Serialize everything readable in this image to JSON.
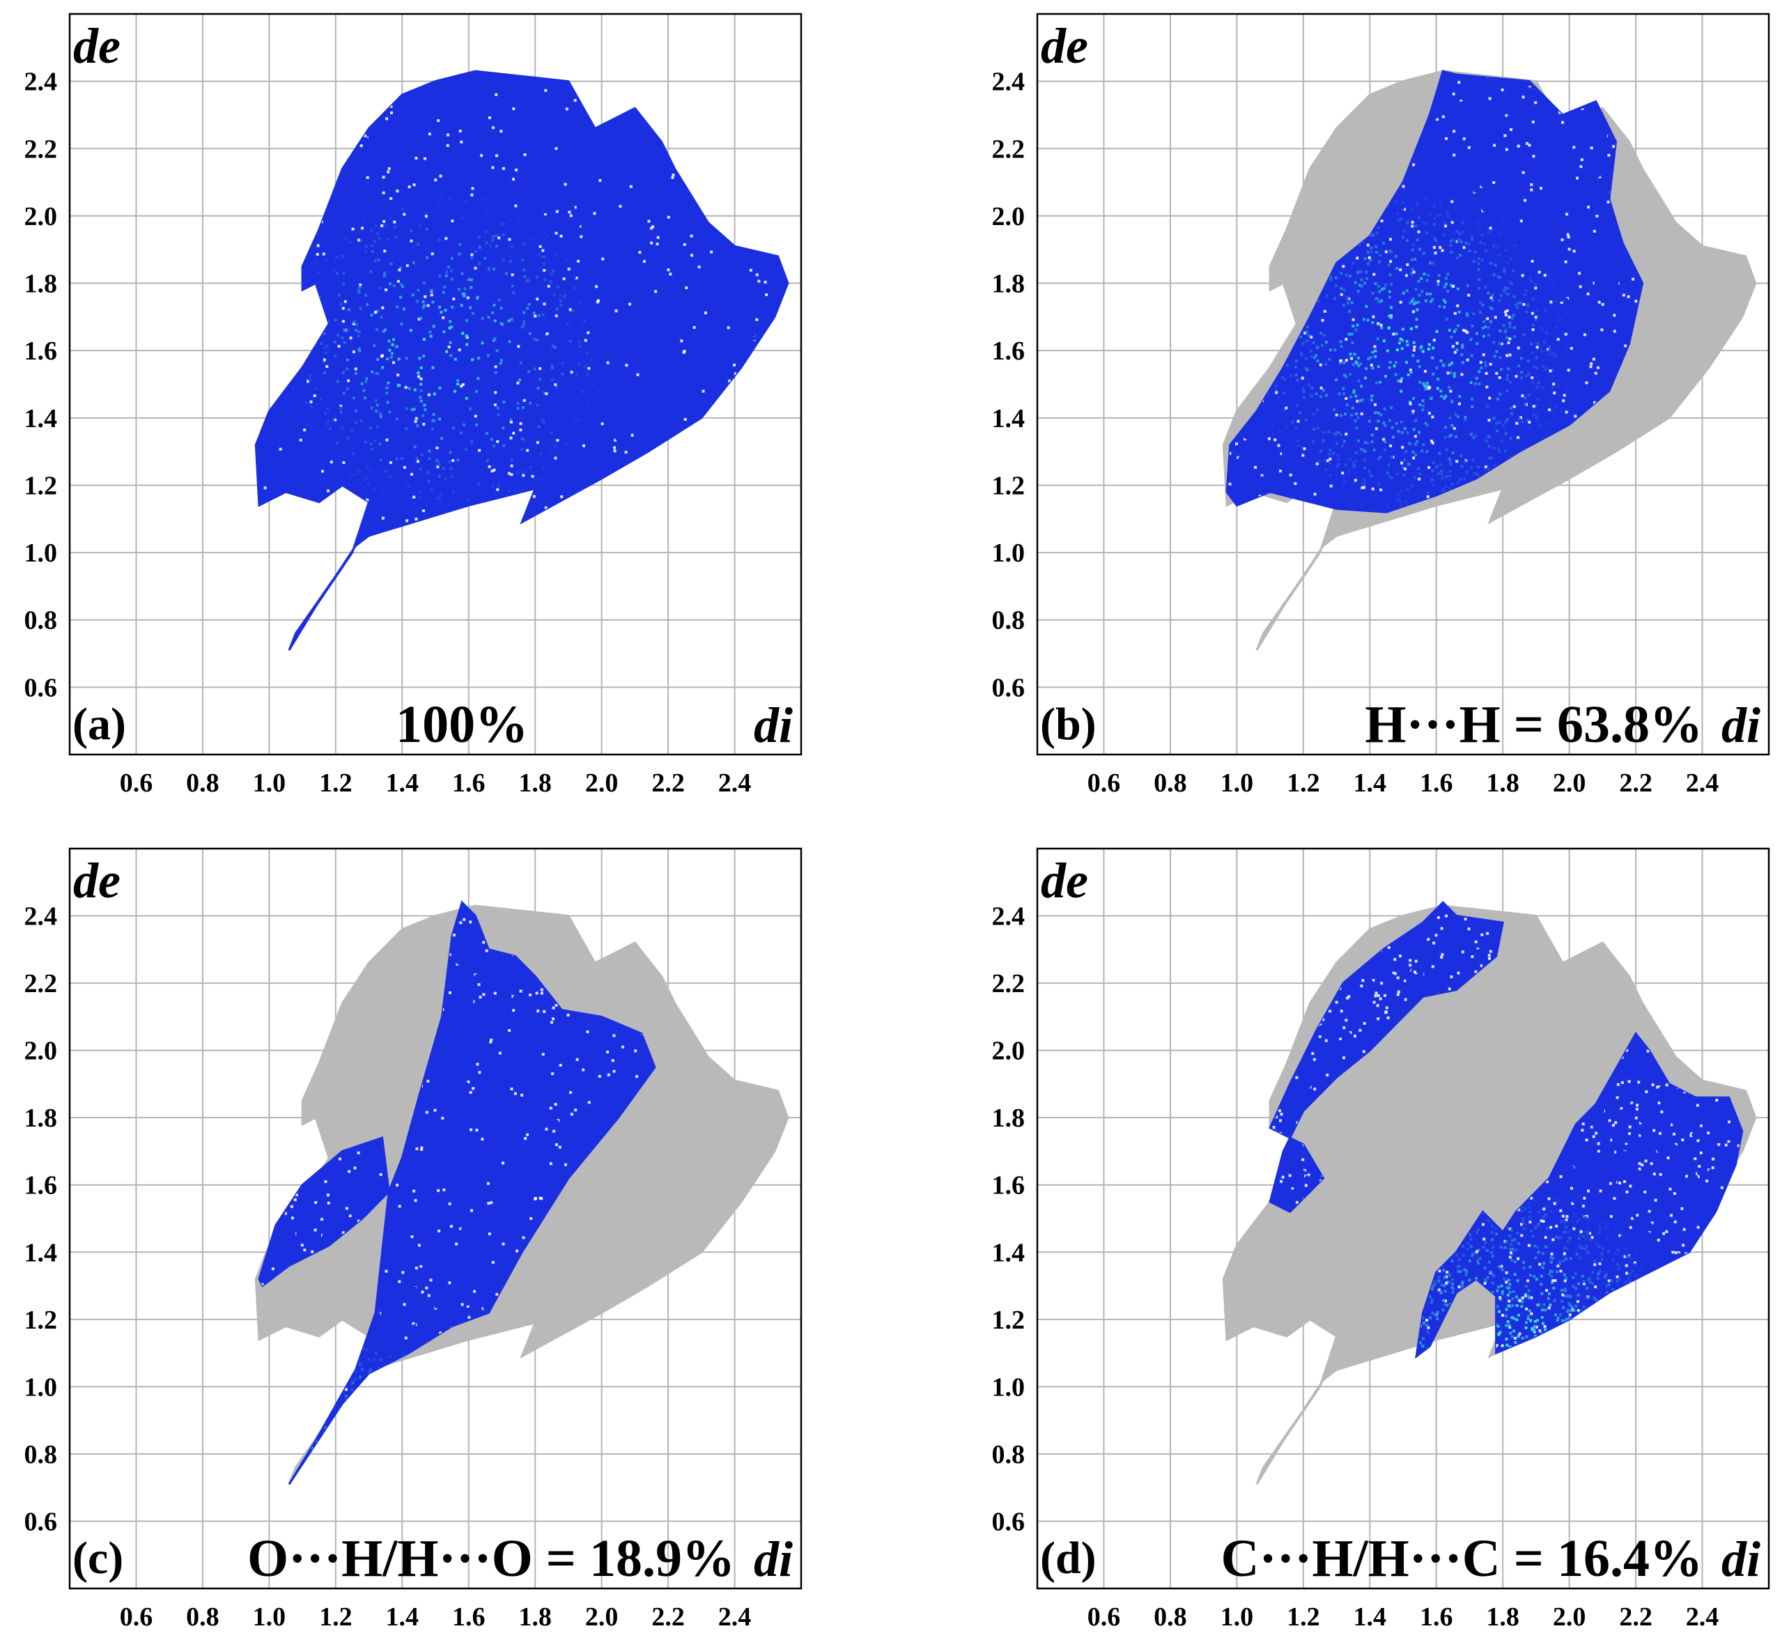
{
  "figure": {
    "palette": {
      "background": "#ffffff",
      "grid": "#b4b4b4",
      "frame": "#000000",
      "density_low": "#1a2fe0",
      "density_high": "#3fe6d2",
      "other_contacts": "#b9b9b9"
    }
  },
  "chart_data": [
    {
      "type": "scatter",
      "subtype": "Hirshfeld fingerprint plot (2D histogram)",
      "panel_label": "(a)",
      "caption": "100%",
      "xlabel": "di",
      "ylabel": "de",
      "xlim": [
        0.4,
        2.6
      ],
      "ylim": [
        0.4,
        2.6
      ],
      "xticks": [
        "0.6",
        "0.8",
        "1.0",
        "1.2",
        "1.4",
        "1.6",
        "1.8",
        "2.0",
        "2.2",
        "2.4"
      ],
      "yticks": [
        "0.6",
        "0.8",
        "1.0",
        "1.2",
        "1.4",
        "1.6",
        "1.8",
        "2.0",
        "2.2",
        "2.4"
      ],
      "grid": true,
      "contact": "all",
      "percentage": 100.0,
      "highlight_region": [
        [
          1.06,
          0.71
        ],
        [
          1.08,
          0.76
        ],
        [
          1.2,
          0.93
        ],
        [
          1.26,
          1.02
        ],
        [
          1.3,
          1.05
        ],
        [
          1.4,
          1.08
        ],
        [
          1.6,
          1.14
        ],
        [
          1.72,
          1.17
        ],
        [
          1.8,
          1.19
        ],
        [
          1.76,
          1.09
        ],
        [
          2.0,
          1.22
        ],
        [
          2.14,
          1.3
        ],
        [
          2.3,
          1.4
        ],
        [
          2.42,
          1.55
        ],
        [
          2.52,
          1.7
        ],
        [
          2.56,
          1.8
        ],
        [
          2.53,
          1.88
        ],
        [
          2.4,
          1.91
        ],
        [
          2.32,
          1.98
        ],
        [
          2.22,
          2.14
        ],
        [
          2.18,
          2.22
        ],
        [
          2.1,
          2.32
        ],
        [
          1.98,
          2.26
        ],
        [
          1.9,
          2.4
        ],
        [
          1.62,
          2.43
        ],
        [
          1.5,
          2.4
        ],
        [
          1.4,
          2.36
        ],
        [
          1.3,
          2.26
        ],
        [
          1.22,
          2.14
        ],
        [
          1.15,
          1.96
        ],
        [
          1.1,
          1.85
        ],
        [
          1.1,
          1.78
        ],
        [
          1.14,
          1.8
        ],
        [
          1.18,
          1.68
        ],
        [
          1.1,
          1.55
        ],
        [
          1.0,
          1.42
        ],
        [
          0.96,
          1.32
        ],
        [
          0.97,
          1.14
        ],
        [
          1.05,
          1.18
        ],
        [
          1.15,
          1.15
        ],
        [
          1.22,
          1.2
        ],
        [
          1.3,
          1.15
        ],
        [
          1.25,
          1.0
        ],
        [
          1.14,
          0.84
        ]
      ],
      "grey_region": [],
      "density_hotspot": [
        1.52,
        1.6
      ]
    },
    {
      "type": "scatter",
      "subtype": "Hirshfeld fingerprint plot (2D histogram)",
      "panel_label": "(b)",
      "caption": "H···H = 63.8%",
      "xlabel": "di",
      "ylabel": "de",
      "xlim": [
        0.4,
        2.6
      ],
      "ylim": [
        0.4,
        2.6
      ],
      "xticks": [
        "0.6",
        "0.8",
        "1.0",
        "1.2",
        "1.4",
        "1.6",
        "1.8",
        "2.0",
        "2.2",
        "2.4"
      ],
      "yticks": [
        "0.6",
        "0.8",
        "1.0",
        "1.2",
        "1.4",
        "1.6",
        "1.8",
        "2.0",
        "2.2",
        "2.4"
      ],
      "grid": true,
      "contact": "H···H",
      "percentage": 63.8,
      "highlight_region": [
        [
          1.0,
          1.14
        ],
        [
          1.1,
          1.18
        ],
        [
          1.22,
          1.15
        ],
        [
          1.3,
          1.13
        ],
        [
          1.45,
          1.12
        ],
        [
          1.6,
          1.17
        ],
        [
          1.72,
          1.22
        ],
        [
          1.85,
          1.3
        ],
        [
          2.0,
          1.38
        ],
        [
          2.12,
          1.48
        ],
        [
          2.18,
          1.62
        ],
        [
          2.22,
          1.8
        ],
        [
          2.16,
          1.92
        ],
        [
          2.12,
          2.05
        ],
        [
          2.14,
          2.22
        ],
        [
          2.08,
          2.34
        ],
        [
          1.98,
          2.3
        ],
        [
          1.88,
          2.4
        ],
        [
          1.66,
          2.42
        ],
        [
          1.62,
          2.43
        ],
        [
          1.58,
          2.3
        ],
        [
          1.5,
          2.1
        ],
        [
          1.4,
          1.94
        ],
        [
          1.3,
          1.86
        ],
        [
          1.22,
          1.7
        ],
        [
          1.14,
          1.55
        ],
        [
          1.06,
          1.42
        ],
        [
          0.98,
          1.32
        ],
        [
          0.97,
          1.18
        ]
      ],
      "grey_region": [
        [
          1.06,
          0.71
        ],
        [
          1.08,
          0.76
        ],
        [
          1.2,
          0.93
        ],
        [
          1.26,
          1.02
        ],
        [
          1.3,
          1.05
        ],
        [
          1.4,
          1.08
        ],
        [
          1.6,
          1.14
        ],
        [
          1.72,
          1.17
        ],
        [
          1.8,
          1.19
        ],
        [
          1.76,
          1.09
        ],
        [
          2.0,
          1.22
        ],
        [
          2.14,
          1.3
        ],
        [
          2.3,
          1.4
        ],
        [
          2.42,
          1.55
        ],
        [
          2.52,
          1.7
        ],
        [
          2.56,
          1.8
        ],
        [
          2.53,
          1.88
        ],
        [
          2.4,
          1.91
        ],
        [
          2.32,
          1.98
        ],
        [
          2.22,
          2.14
        ],
        [
          2.18,
          2.22
        ],
        [
          2.1,
          2.32
        ],
        [
          1.98,
          2.26
        ],
        [
          1.9,
          2.4
        ],
        [
          1.62,
          2.43
        ],
        [
          1.5,
          2.4
        ],
        [
          1.4,
          2.36
        ],
        [
          1.3,
          2.26
        ],
        [
          1.22,
          2.14
        ],
        [
          1.15,
          1.96
        ],
        [
          1.1,
          1.85
        ],
        [
          1.1,
          1.78
        ],
        [
          1.14,
          1.8
        ],
        [
          1.18,
          1.68
        ],
        [
          1.1,
          1.55
        ],
        [
          1.0,
          1.42
        ],
        [
          0.96,
          1.32
        ],
        [
          0.97,
          1.14
        ],
        [
          1.05,
          1.18
        ],
        [
          1.15,
          1.15
        ],
        [
          1.22,
          1.2
        ],
        [
          1.3,
          1.15
        ],
        [
          1.25,
          1.0
        ],
        [
          1.14,
          0.84
        ]
      ],
      "density_hotspot": [
        1.52,
        1.6
      ]
    },
    {
      "type": "scatter",
      "subtype": "Hirshfeld fingerprint plot (2D histogram)",
      "panel_label": "(c)",
      "caption": "O···H/H···O = 18.9%",
      "xlabel": "di",
      "ylabel": "de",
      "xlim": [
        0.4,
        2.6
      ],
      "ylim": [
        0.4,
        2.6
      ],
      "xticks": [
        "0.6",
        "0.8",
        "1.0",
        "1.2",
        "1.4",
        "1.6",
        "1.8",
        "2.0",
        "2.2",
        "2.4"
      ],
      "yticks": [
        "0.6",
        "0.8",
        "1.0",
        "1.2",
        "1.4",
        "1.6",
        "1.8",
        "2.0",
        "2.2",
        "2.4"
      ],
      "grid": true,
      "contact": "O···H/H···O",
      "percentage": 18.9,
      "highlight_region": [
        [
          1.06,
          0.71
        ],
        [
          1.12,
          0.8
        ],
        [
          1.22,
          0.95
        ],
        [
          1.3,
          1.04
        ],
        [
          1.42,
          1.1
        ],
        [
          1.55,
          1.18
        ],
        [
          1.66,
          1.22
        ],
        [
          1.76,
          1.4
        ],
        [
          1.9,
          1.62
        ],
        [
          2.05,
          1.8
        ],
        [
          2.16,
          1.95
        ],
        [
          2.12,
          2.05
        ],
        [
          2.0,
          2.1
        ],
        [
          1.88,
          2.12
        ],
        [
          1.8,
          2.22
        ],
        [
          1.74,
          2.28
        ],
        [
          1.66,
          2.3
        ],
        [
          1.62,
          2.4
        ],
        [
          1.58,
          2.44
        ],
        [
          1.55,
          2.34
        ],
        [
          1.52,
          2.1
        ],
        [
          1.45,
          1.86
        ],
        [
          1.4,
          1.68
        ],
        [
          1.36,
          1.58
        ],
        [
          1.28,
          1.5
        ],
        [
          1.18,
          1.42
        ],
        [
          1.06,
          1.36
        ],
        [
          0.98,
          1.3
        ],
        [
          0.97,
          1.32
        ],
        [
          1.02,
          1.48
        ],
        [
          1.1,
          1.6
        ],
        [
          1.22,
          1.7
        ],
        [
          1.34,
          1.74
        ],
        [
          1.36,
          1.58
        ],
        [
          1.34,
          1.4
        ],
        [
          1.32,
          1.22
        ],
        [
          1.26,
          1.05
        ],
        [
          1.14,
          0.84
        ]
      ],
      "grey_region": [
        [
          1.06,
          0.71
        ],
        [
          1.08,
          0.76
        ],
        [
          1.2,
          0.93
        ],
        [
          1.26,
          1.02
        ],
        [
          1.3,
          1.05
        ],
        [
          1.4,
          1.08
        ],
        [
          1.6,
          1.14
        ],
        [
          1.72,
          1.17
        ],
        [
          1.8,
          1.19
        ],
        [
          1.76,
          1.09
        ],
        [
          2.0,
          1.22
        ],
        [
          2.14,
          1.3
        ],
        [
          2.3,
          1.4
        ],
        [
          2.42,
          1.55
        ],
        [
          2.52,
          1.7
        ],
        [
          2.56,
          1.8
        ],
        [
          2.53,
          1.88
        ],
        [
          2.4,
          1.91
        ],
        [
          2.32,
          1.98
        ],
        [
          2.22,
          2.14
        ],
        [
          2.18,
          2.22
        ],
        [
          2.1,
          2.32
        ],
        [
          1.98,
          2.26
        ],
        [
          1.9,
          2.4
        ],
        [
          1.62,
          2.43
        ],
        [
          1.5,
          2.4
        ],
        [
          1.4,
          2.36
        ],
        [
          1.3,
          2.26
        ],
        [
          1.22,
          2.14
        ],
        [
          1.15,
          1.96
        ],
        [
          1.1,
          1.85
        ],
        [
          1.1,
          1.78
        ],
        [
          1.14,
          1.8
        ],
        [
          1.18,
          1.68
        ],
        [
          1.1,
          1.55
        ],
        [
          1.0,
          1.42
        ],
        [
          0.96,
          1.32
        ],
        [
          0.97,
          1.14
        ],
        [
          1.05,
          1.18
        ],
        [
          1.15,
          1.15
        ],
        [
          1.22,
          1.2
        ],
        [
          1.3,
          1.15
        ],
        [
          1.25,
          1.0
        ],
        [
          1.14,
          0.84
        ]
      ],
      "density_hotspot": [
        1.08,
        0.76
      ]
    },
    {
      "type": "scatter",
      "subtype": "Hirshfeld fingerprint plot (2D histogram)",
      "panel_label": "(d)",
      "caption": "C···H/H···C = 16.4%",
      "xlabel": "di",
      "ylabel": "de",
      "xlim": [
        0.4,
        2.6
      ],
      "ylim": [
        0.4,
        2.6
      ],
      "xticks": [
        "0.6",
        "0.8",
        "1.0",
        "1.2",
        "1.4",
        "1.6",
        "1.8",
        "2.0",
        "2.2",
        "2.4"
      ],
      "yticks": [
        "0.6",
        "0.8",
        "1.0",
        "1.2",
        "1.4",
        "1.6",
        "1.8",
        "2.0",
        "2.2",
        "2.4"
      ],
      "grid": true,
      "contact": "C···H/H···C",
      "percentage": 16.4,
      "highlight_region": [
        [
          1.1,
          1.77
        ],
        [
          1.16,
          1.9
        ],
        [
          1.24,
          2.06
        ],
        [
          1.32,
          2.2
        ],
        [
          1.44,
          2.3
        ],
        [
          1.56,
          2.38
        ],
        [
          1.62,
          2.44
        ],
        [
          1.66,
          2.4
        ],
        [
          1.8,
          2.38
        ],
        [
          1.78,
          2.28
        ],
        [
          1.66,
          2.18
        ],
        [
          1.56,
          2.16
        ],
        [
          1.46,
          2.06
        ],
        [
          1.4,
          2.0
        ],
        [
          1.3,
          1.92
        ],
        [
          1.2,
          1.82
        ],
        [
          1.14,
          1.7
        ],
        [
          1.1,
          1.55
        ],
        [
          1.16,
          1.52
        ],
        [
          1.22,
          1.58
        ],
        [
          1.26,
          1.62
        ],
        [
          1.2,
          1.72
        ]
      ],
      "highlight_region_2": [
        [
          1.54,
          1.09
        ],
        [
          1.58,
          1.12
        ],
        [
          1.62,
          1.2
        ],
        [
          1.66,
          1.28
        ],
        [
          1.72,
          1.32
        ],
        [
          1.78,
          1.27
        ],
        [
          1.78,
          1.1
        ],
        [
          1.9,
          1.15
        ],
        [
          2.0,
          1.2
        ],
        [
          2.12,
          1.28
        ],
        [
          2.24,
          1.34
        ],
        [
          2.36,
          1.4
        ],
        [
          2.44,
          1.52
        ],
        [
          2.5,
          1.66
        ],
        [
          2.52,
          1.76
        ],
        [
          2.48,
          1.86
        ],
        [
          2.38,
          1.86
        ],
        [
          2.3,
          1.9
        ],
        [
          2.24,
          2.0
        ],
        [
          2.2,
          2.05
        ],
        [
          2.16,
          1.98
        ],
        [
          2.08,
          1.84
        ],
        [
          2.02,
          1.78
        ],
        [
          1.94,
          1.62
        ],
        [
          1.84,
          1.52
        ],
        [
          1.8,
          1.46
        ],
        [
          1.74,
          1.52
        ],
        [
          1.66,
          1.4
        ],
        [
          1.6,
          1.34
        ],
        [
          1.56,
          1.22
        ]
      ],
      "grey_region": [
        [
          1.06,
          0.71
        ],
        [
          1.08,
          0.76
        ],
        [
          1.2,
          0.93
        ],
        [
          1.26,
          1.02
        ],
        [
          1.3,
          1.05
        ],
        [
          1.4,
          1.08
        ],
        [
          1.6,
          1.14
        ],
        [
          1.72,
          1.17
        ],
        [
          1.8,
          1.19
        ],
        [
          1.76,
          1.09
        ],
        [
          2.0,
          1.22
        ],
        [
          2.14,
          1.3
        ],
        [
          2.3,
          1.4
        ],
        [
          2.42,
          1.55
        ],
        [
          2.52,
          1.7
        ],
        [
          2.56,
          1.8
        ],
        [
          2.53,
          1.88
        ],
        [
          2.4,
          1.91
        ],
        [
          2.32,
          1.98
        ],
        [
          2.22,
          2.14
        ],
        [
          2.18,
          2.22
        ],
        [
          2.1,
          2.32
        ],
        [
          1.98,
          2.26
        ],
        [
          1.9,
          2.4
        ],
        [
          1.62,
          2.43
        ],
        [
          1.5,
          2.4
        ],
        [
          1.4,
          2.36
        ],
        [
          1.3,
          2.26
        ],
        [
          1.22,
          2.14
        ],
        [
          1.15,
          1.96
        ],
        [
          1.1,
          1.85
        ],
        [
          1.1,
          1.78
        ],
        [
          1.14,
          1.8
        ],
        [
          1.18,
          1.68
        ],
        [
          1.1,
          1.55
        ],
        [
          1.0,
          1.42
        ],
        [
          0.96,
          1.32
        ],
        [
          0.97,
          1.14
        ],
        [
          1.05,
          1.18
        ],
        [
          1.15,
          1.15
        ],
        [
          1.22,
          1.2
        ],
        [
          1.3,
          1.15
        ],
        [
          1.25,
          1.0
        ],
        [
          1.14,
          0.84
        ]
      ],
      "density_hotspot": [
        1.82,
        1.12
      ]
    }
  ]
}
